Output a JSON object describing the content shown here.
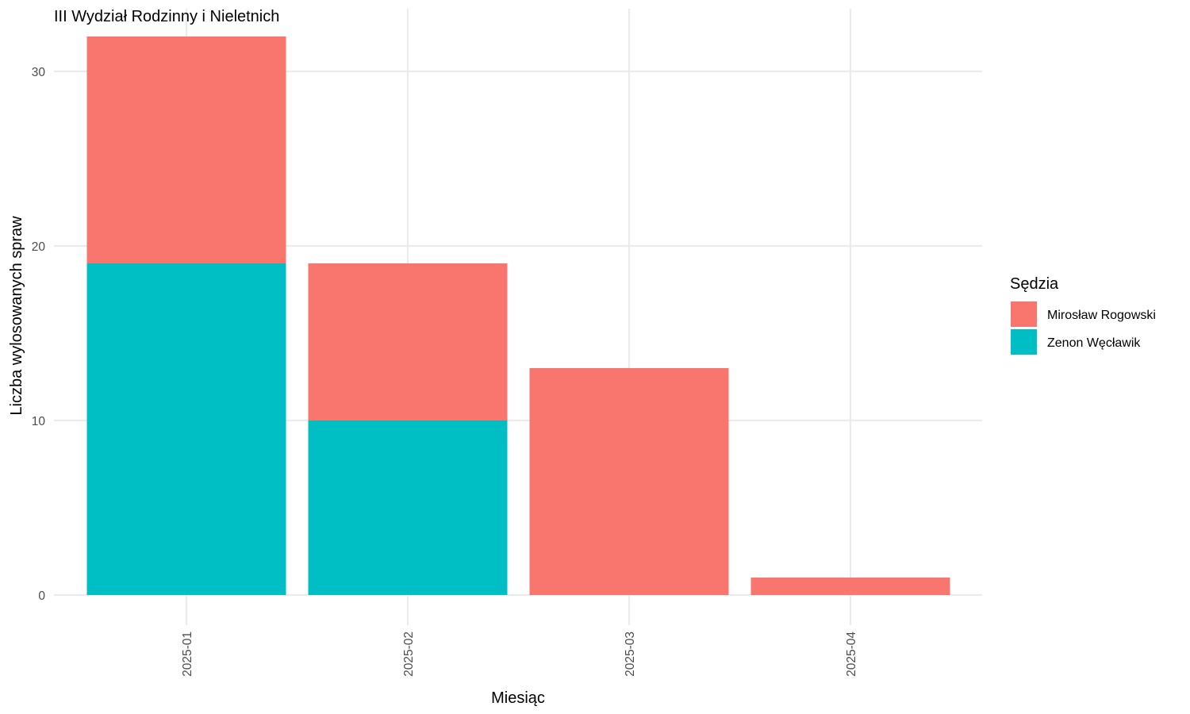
{
  "chart_data": {
    "type": "bar",
    "stacked": true,
    "title": "III Wydział Rodzinny i Nieletnich",
    "xlabel": "Miesiąc",
    "ylabel": "Liczba wylosowanych spraw",
    "categories": [
      "2025-01",
      "2025-02",
      "2025-03",
      "2025-04"
    ],
    "series": [
      {
        "name": "Mirosław Rogowski",
        "color": "#F8766D",
        "values": [
          13,
          9,
          13,
          1
        ]
      },
      {
        "name": "Zenon Węcławik",
        "color": "#00BFC4",
        "values": [
          19,
          10,
          0,
          0
        ]
      }
    ],
    "ylim": [
      0,
      32
    ],
    "yticks": [
      0,
      10,
      20,
      30
    ],
    "grid": true,
    "x_tick_label_rotation": "vertical",
    "legend": {
      "title": "Sędzia",
      "position": "right"
    },
    "colors": {
      "grid": "#ebebeb",
      "tick_text": "#4d4d4d",
      "background": "#ffffff"
    }
  }
}
